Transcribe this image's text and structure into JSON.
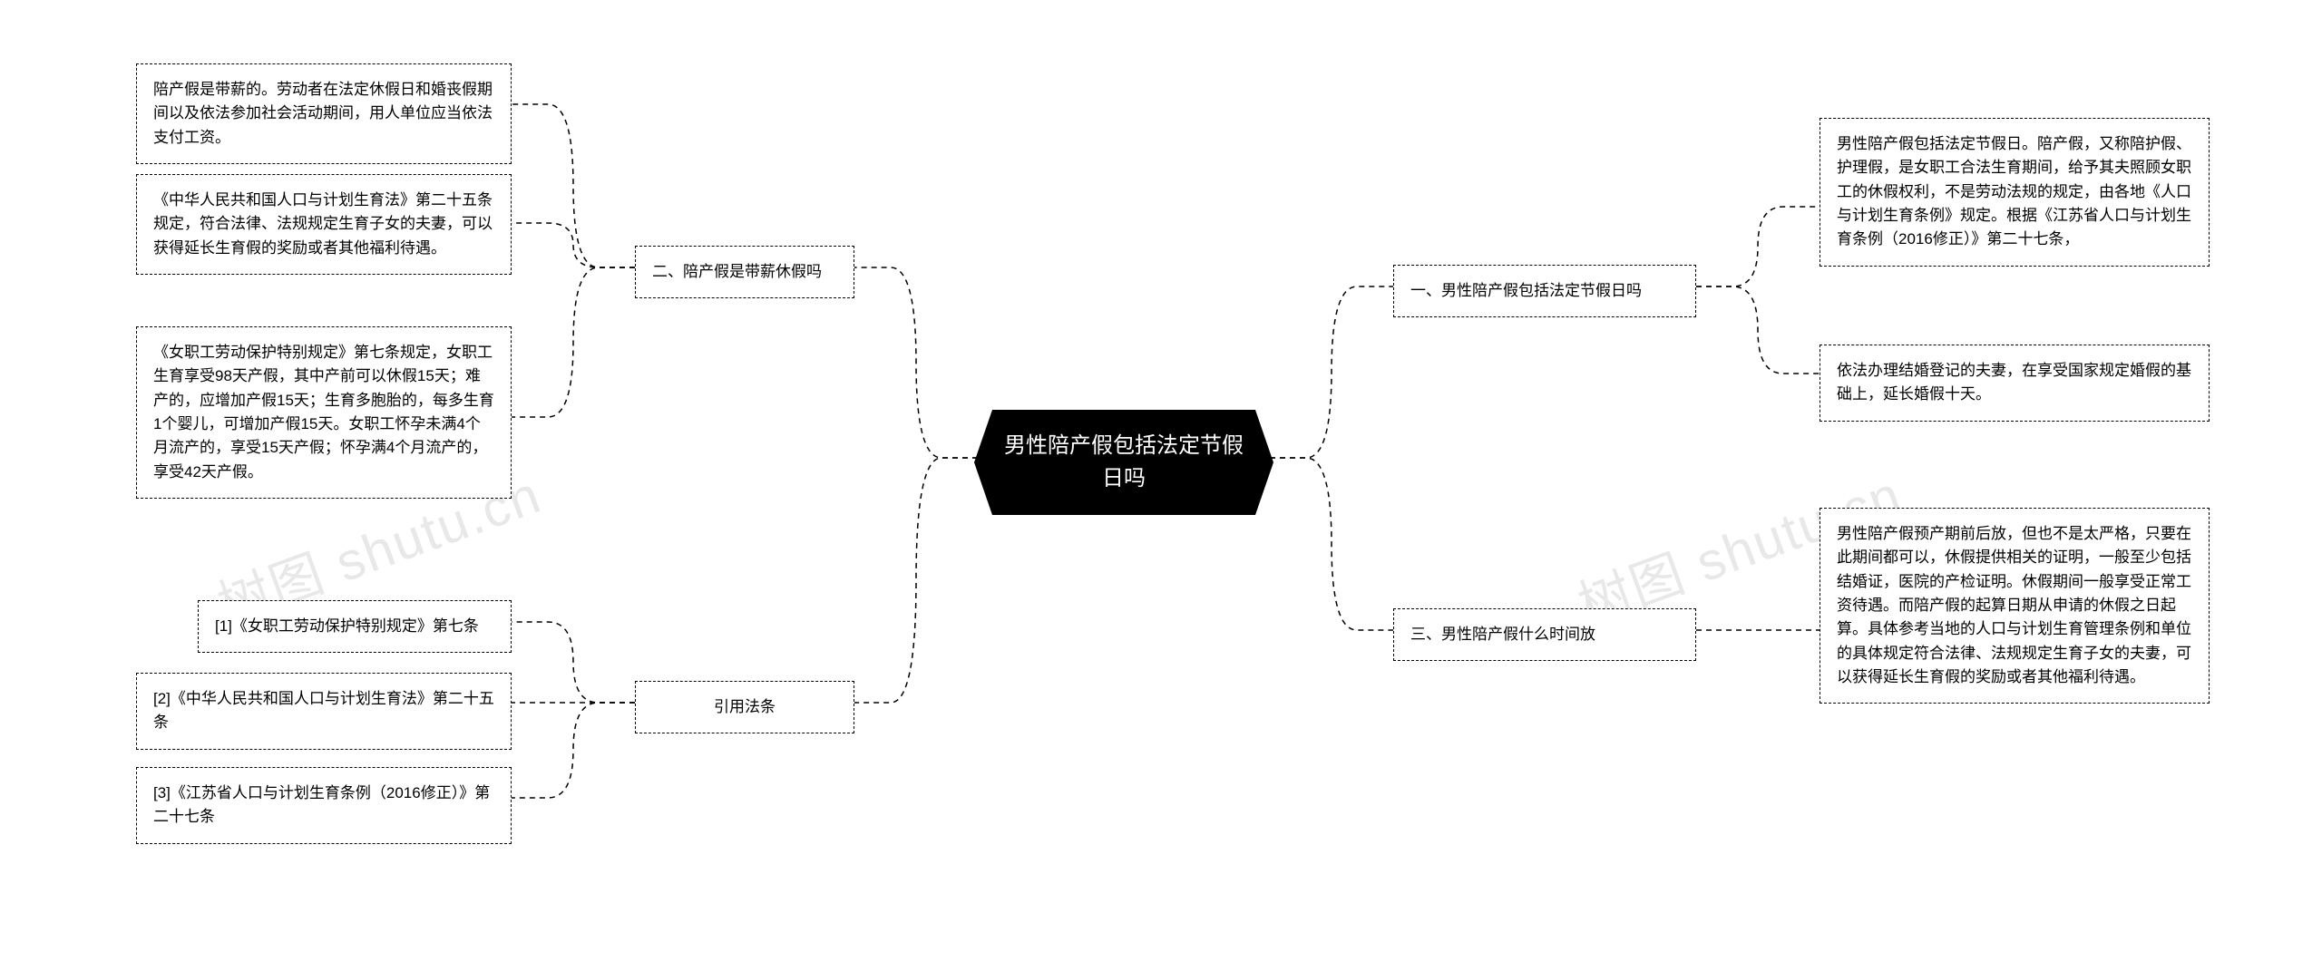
{
  "mindmap": {
    "type": "mindmap",
    "direction": "bi-lateral",
    "root": {
      "text": "男性陪产假包括法定节假\n日吗",
      "bg": "#000000",
      "fg": "#ffffff",
      "fontsize": 24
    },
    "right_branches": [
      {
        "label": "一、男性陪产假包括法定节假日吗",
        "children": [
          {
            "text": "男性陪产假包括法定节假日。陪产假，又称陪护假、护理假，是女职工合法生育期间，给予其夫照顾女职工的休假权利，不是劳动法规的规定，由各地《人口与计划生育条例》规定。根据《江苏省人口与计划生育条例（2016修正）》第二十七条，"
          },
          {
            "text": "依法办理结婚登记的夫妻，在享受国家规定婚假的基础上，延长婚假十天。"
          }
        ]
      },
      {
        "label": "三、男性陪产假什么时间放",
        "children": [
          {
            "text": "男性陪产假预产期前后放，但也不是太严格，只要在此期间都可以，休假提供相关的证明，一般至少包括结婚证，医院的产检证明。休假期间一般享受正常工资待遇。而陪产假的起算日期从申请的休假之日起算。具体参考当地的人口与计划生育管理条例和单位的具体规定符合法律、法规规定生育子女的夫妻，可以获得延长生育假的奖励或者其他福利待遇。"
          }
        ]
      }
    ],
    "left_branches": [
      {
        "label": "二、陪产假是带薪休假吗",
        "children": [
          {
            "text": "陪产假是带薪的。劳动者在法定休假日和婚丧假期间以及依法参加社会活动期间，用人单位应当依法支付工资。"
          },
          {
            "text": "《中华人民共和国人口与计划生育法》第二十五条规定，符合法律、法规规定生育子女的夫妻，可以获得延长生育假的奖励或者其他福利待遇。"
          },
          {
            "text": "《女职工劳动保护特别规定》第七条规定，女职工生育享受98天产假，其中产前可以休假15天；难产的，应增加产假15天；生育多胞胎的，每多生育1个婴儿，可增加产假15天。女职工怀孕未满4个月流产的，享受15天产假；怀孕满4个月流产的，享受42天产假。"
          }
        ]
      },
      {
        "label": "引用法条",
        "children": [
          {
            "text": "[1]《女职工劳动保护特别规定》第七条"
          },
          {
            "text": "[2]《中华人民共和国人口与计划生育法》第二十五条"
          },
          {
            "text": "[3]《江苏省人口与计划生育条例（2016修正）》第二十七条"
          }
        ]
      }
    ],
    "style": {
      "node_border": "1.5px dashed #000000",
      "node_bg": "#ffffff",
      "node_fg": "#000000",
      "branch_fontsize": 17,
      "leaf_fontsize": 17,
      "connector_color": "#000000",
      "connector_dash": "6 5",
      "background": "#ffffff"
    },
    "watermark": {
      "text": "树图 shutu.cn",
      "color": "#e8e8e8",
      "fontsize": 58,
      "rotate_deg": -20
    }
  }
}
